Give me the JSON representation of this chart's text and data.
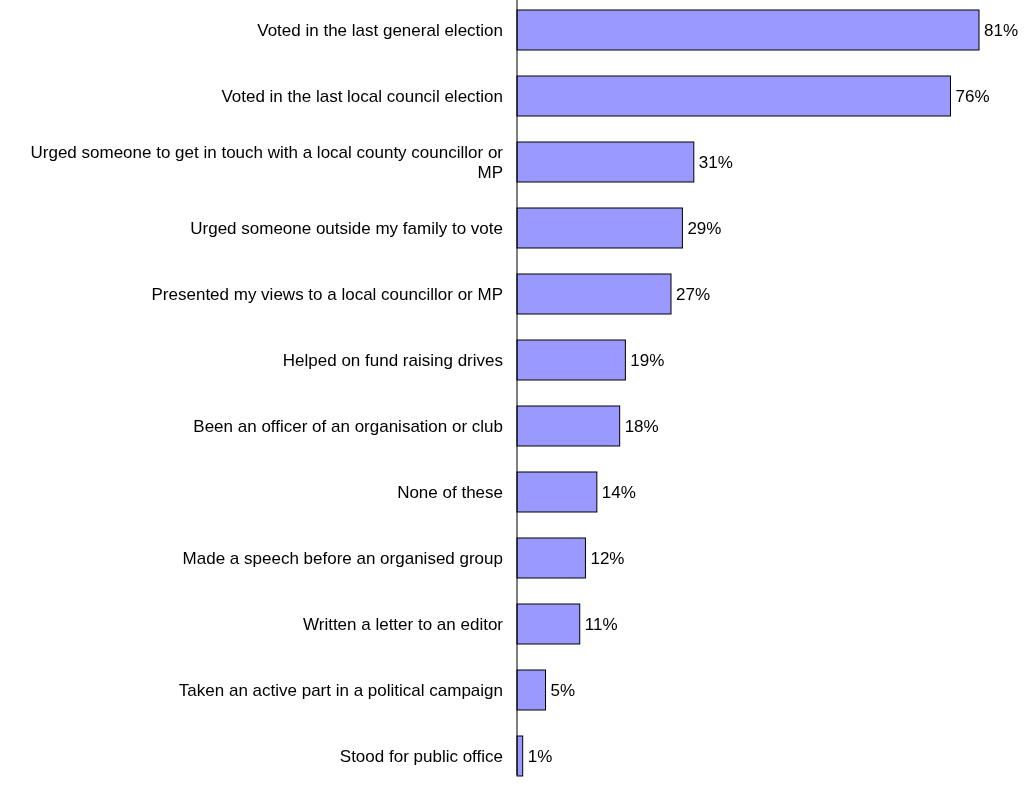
{
  "chart_data": {
    "type": "bar",
    "orientation": "horizontal",
    "color": "#9999ff",
    "categories": [
      "Voted in the last general election",
      "Voted in the last local council election",
      "Urged someone to get in touch with a local county councillor or MP",
      "Urged someone outside my family to vote",
      "Presented my views to a local councillor or MP",
      "Helped on fund raising drives",
      "Been an officer of an organisation or club",
      "None of these",
      "Made a speech before an organised group",
      "Written a letter to an editor",
      "Taken an active part in a political campaign",
      "Stood for public office"
    ],
    "values": [
      81,
      76,
      31,
      29,
      27,
      19,
      18,
      14,
      12,
      11,
      5,
      1
    ],
    "value_labels": [
      "81%",
      "76%",
      "31%",
      "29%",
      "27%",
      "19%",
      "18%",
      "14%",
      "12%",
      "11%",
      "5%",
      "1%"
    ]
  }
}
